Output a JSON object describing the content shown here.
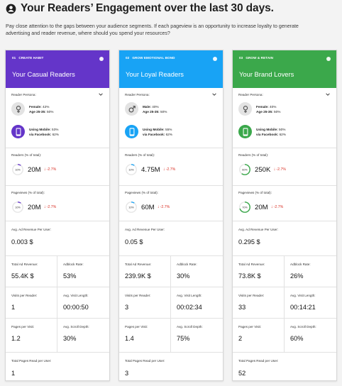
{
  "header": {
    "title": "Your Readers’ Engagement over the last 30 days.",
    "description": "Pay close attention to the gaps between your audience segments. If each pageview is an opportunity to increase loyalty to generate advertising and reader revenue, where should you spend your resources?",
    "icon": "person-circle-icon"
  },
  "labels": {
    "reader_persona": "Reader Persona:",
    "readers": "Readers (% of total):",
    "pageviews": "Pageviews (% of total):",
    "avg_ad_revenue": "Avg. Ad Revenue Per User:",
    "total_ad_revenue": "Total Ad Revenue:",
    "adblock_rate": "Adblock Rate:",
    "visits_per_reader": "Visits per Reader:",
    "avg_visit_length": "Avg. Visit Length:",
    "pages_per_visit": "Pages per Visit:",
    "avg_scroll_depth": "Avg. Scroll Depth:",
    "total_pages_read": "Total Pages Read per User:",
    "using_mobile": "Using Mobile:",
    "via_facebook": "via Facebook:",
    "age": "Age 25-35:",
    "info": "i"
  },
  "cards": [
    {
      "num": "01",
      "tag": "CREATE HABIT",
      "name": "Your Casual Readers",
      "color": "#6435c9",
      "gender_label": "Female:",
      "gender_value": "42%",
      "gender_icon": "female-icon",
      "age_value": "50%",
      "mobile_value": "53%",
      "facebook_value": "62%",
      "readers_pct": "10%",
      "readers_fraction": 0.1,
      "readers_value": "20M",
      "readers_delta": "-2.7%",
      "pageviews_pct": "10%",
      "pageviews_fraction": 0.1,
      "pageviews_value": "20M",
      "pageviews_delta": "-2.7%",
      "avg_ad_revenue": "0.003 $",
      "total_ad_revenue": "55.4K $",
      "adblock_rate": "53%",
      "visits_per_reader": "1",
      "avg_visit_length": "00:00:50",
      "pages_per_visit": "1.2",
      "avg_scroll_depth": "30%",
      "total_pages_read": "1"
    },
    {
      "num": "02",
      "tag": "GROW EMOTIONAL BOND",
      "name": "Your Loyal Readers",
      "color": "#18a3f5",
      "gender_label": "Male:",
      "gender_value": "40%",
      "gender_icon": "male-icon",
      "age_value": "50%",
      "mobile_value": "55%",
      "facebook_value": "62%",
      "readers_pct": "10%",
      "readers_fraction": 0.1,
      "readers_value": "4.75M",
      "readers_delta": "-2.7%",
      "pageviews_pct": "10%",
      "pageviews_fraction": 0.1,
      "pageviews_value": "60M",
      "pageviews_delta": "-2.7%",
      "avg_ad_revenue": "0.05 $",
      "total_ad_revenue": "239.9K $",
      "adblock_rate": "30%",
      "visits_per_reader": "3",
      "avg_visit_length": "00:02:34",
      "pages_per_visit": "1.4",
      "avg_scroll_depth": "75%",
      "total_pages_read": "3"
    },
    {
      "num": "03",
      "tag": "GROW & RETAIN",
      "name": "Your Brand Lovers",
      "color": "#3ba84b",
      "gender_label": "Female:",
      "gender_value": "40%",
      "gender_icon": "female-icon",
      "age_value": "50%",
      "mobile_value": "50%",
      "facebook_value": "62%",
      "readers_pct": "60%",
      "readers_fraction": 0.6,
      "readers_value": "250K",
      "readers_delta": "-2.7%",
      "pageviews_pct": "70%",
      "pageviews_fraction": 0.7,
      "pageviews_value": "20M",
      "pageviews_delta": "-2.7%",
      "avg_ad_revenue": "0.295 $",
      "total_ad_revenue": "73.8K $",
      "adblock_rate": "26%",
      "visits_per_reader": "33",
      "avg_visit_length": "00:14:21",
      "pages_per_visit": "2",
      "avg_scroll_depth": "60%",
      "total_pages_read": "52"
    }
  ],
  "icons": {
    "mobile": "mobile-phone-icon",
    "chevron": "chevron-down-icon",
    "delta": "arrow-down-icon",
    "arrow": "↓"
  },
  "colors": {
    "delta_negative": "#d93025",
    "donut_track": "#e6e6e6"
  }
}
